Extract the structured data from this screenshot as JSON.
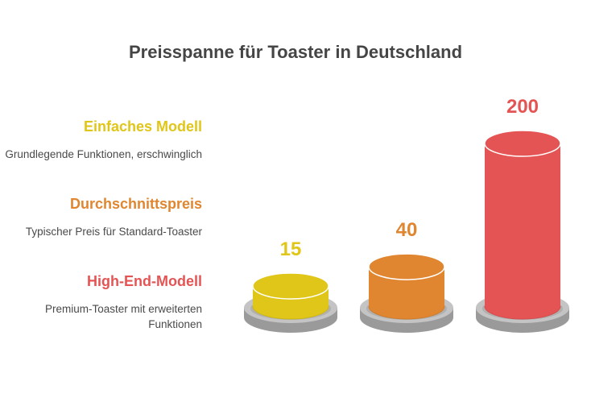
{
  "chart_data": {
    "type": "bar",
    "title": "Preisspanne für Toaster in Deutschland",
    "categories": [
      "Einfaches Modell",
      "Durchschnittspreis",
      "High-End-Modell"
    ],
    "values": [
      15,
      40,
      200
    ],
    "value_labels": [
      "15",
      "40",
      "200"
    ],
    "descriptions": [
      "Grundlegende Funktionen, erschwinglich",
      "Typischer Preis für Standard-Toaster",
      "Premium-Toaster mit erweiterten Funktionen"
    ],
    "colors": [
      "#e0c618",
      "#e08630",
      "#e55454"
    ],
    "legend_position": "left",
    "xlabel": "",
    "ylabel": "",
    "grid": false
  }
}
